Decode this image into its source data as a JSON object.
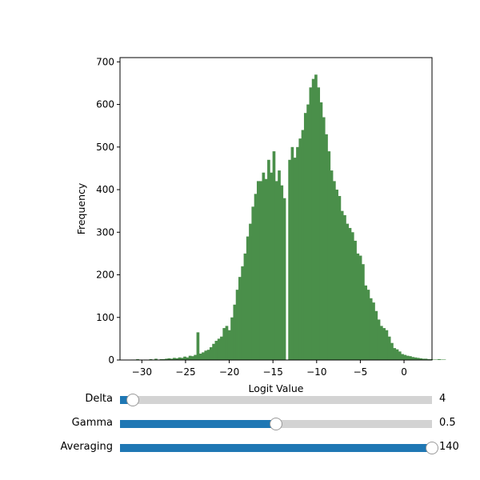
{
  "chart_data": {
    "type": "bar",
    "xlabel": "Logit Value",
    "ylabel": "Frequency",
    "xlim": [
      -32.5,
      3.2
    ],
    "ylim": [
      0,
      710
    ],
    "x_ticks": [
      -30,
      -25,
      -20,
      -15,
      -10,
      -5,
      0
    ],
    "x_tick_labels": [
      "−30",
      "−25",
      "−20",
      "−15",
      "−10",
      "−5",
      "0"
    ],
    "y_ticks": [
      0,
      100,
      200,
      300,
      400,
      500,
      600,
      700
    ],
    "y_tick_labels": [
      "0",
      "100",
      "200",
      "300",
      "400",
      "500",
      "600",
      "700"
    ],
    "bar_color": "#4a8f4a",
    "bin_start": -31.25,
    "bin_width": 0.3,
    "values": [
      1,
      1,
      2,
      1,
      0,
      1,
      0,
      2,
      1,
      3,
      1,
      2,
      2,
      3,
      4,
      3,
      5,
      4,
      6,
      5,
      8,
      6,
      10,
      9,
      12,
      65,
      15,
      18,
      22,
      24,
      30,
      38,
      45,
      50,
      55,
      75,
      80,
      70,
      100,
      130,
      165,
      195,
      220,
      250,
      290,
      320,
      360,
      390,
      420,
      420,
      440,
      425,
      470,
      440,
      490,
      420,
      445,
      410,
      380,
      0,
      470,
      500,
      475,
      500,
      520,
      540,
      580,
      600,
      640,
      660,
      670,
      640,
      605,
      570,
      530,
      490,
      445,
      420,
      400,
      385,
      350,
      340,
      320,
      310,
      300,
      280,
      250,
      245,
      225,
      175,
      165,
      145,
      135,
      115,
      95,
      80,
      75,
      70,
      55,
      40,
      28,
      25,
      20,
      14,
      12,
      10,
      9,
      7,
      6,
      5,
      4,
      3,
      3,
      2,
      2,
      1,
      1,
      2,
      1,
      1
    ]
  },
  "sliders": [
    {
      "label": "Delta",
      "value": "4",
      "fraction": 0.04
    },
    {
      "label": "Gamma",
      "value": "0.5",
      "fraction": 0.5
    },
    {
      "label": "Averaging",
      "value": "140",
      "fraction": 1.0
    }
  ]
}
